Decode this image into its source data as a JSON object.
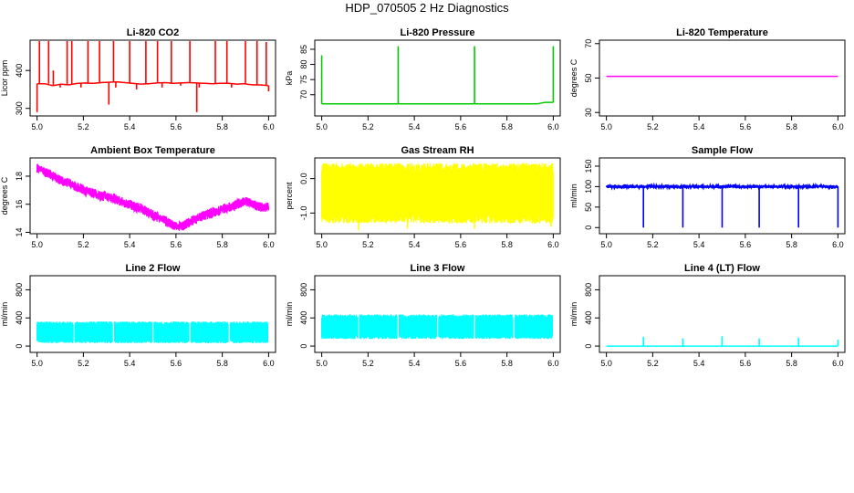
{
  "title": "HDP_070505 2 Hz Diagnostics",
  "chart_data": [
    {
      "type": "line",
      "title": "Li-820 CO2",
      "xlabel": "",
      "ylabel": "Licor ppm",
      "color": "#ff0000",
      "xlim": [
        4.97,
        6.03
      ],
      "ylim": [
        280,
        480
      ],
      "xticks": [
        "5.0",
        "5.2",
        "5.4",
        "5.6",
        "5.8",
        "6.0"
      ],
      "yticks": [
        "300",
        "400"
      ],
      "ytickvals": [
        300,
        400
      ],
      "series": [
        {
          "values": [
            365,
            365,
            360,
            364,
            362,
            366,
            367,
            366,
            368,
            369,
            370,
            368,
            366,
            364,
            365,
            367,
            368,
            366,
            367,
            368,
            367,
            366,
            365,
            366,
            366,
            364,
            365,
            362,
            362,
            360
          ],
          "spikes": [
            [
              5.0,
              290
            ],
            [
              5.01,
              480
            ],
            [
              5.05,
              480
            ],
            [
              5.07,
              400
            ],
            [
              5.1,
              355
            ],
            [
              5.13,
              480
            ],
            [
              5.15,
              480
            ],
            [
              5.19,
              355
            ],
            [
              5.22,
              480
            ],
            [
              5.27,
              480
            ],
            [
              5.31,
              310
            ],
            [
              5.33,
              480
            ],
            [
              5.34,
              355
            ],
            [
              5.4,
              480
            ],
            [
              5.43,
              350
            ],
            [
              5.47,
              480
            ],
            [
              5.52,
              480
            ],
            [
              5.54,
              355
            ],
            [
              5.58,
              480
            ],
            [
              5.62,
              360
            ],
            [
              5.66,
              480
            ],
            [
              5.69,
              290
            ],
            [
              5.7,
              355
            ],
            [
              5.77,
              480
            ],
            [
              5.82,
              480
            ],
            [
              5.84,
              355
            ],
            [
              5.9,
              480
            ],
            [
              5.95,
              480
            ],
            [
              5.99,
              475
            ],
            [
              6.0,
              345
            ]
          ]
        }
      ]
    },
    {
      "type": "line",
      "title": "Li-820 Pressure",
      "xlabel": "",
      "ylabel": "kPa",
      "color": "#00cc00",
      "xlim": [
        4.97,
        6.03
      ],
      "ylim": [
        63,
        88
      ],
      "xticks": [
        "5.0",
        "5.2",
        "5.4",
        "5.6",
        "5.8",
        "6.0"
      ],
      "yticks": [
        "70",
        "75",
        "80",
        "85"
      ],
      "ytickvals": [
        70,
        75,
        80,
        85
      ],
      "series": [
        {
          "values": [
            67,
            67,
            67,
            67,
            67,
            67,
            67,
            67,
            67,
            67,
            67,
            67,
            67,
            67,
            67,
            67,
            67,
            67,
            67,
            67,
            67,
            67,
            67,
            67,
            67,
            67,
            67,
            67,
            67.5,
            67.5
          ],
          "spikes": [
            [
              5.0,
              83
            ],
            [
              5.33,
              86
            ],
            [
              5.66,
              86
            ],
            [
              6.0,
              86
            ]
          ]
        }
      ]
    },
    {
      "type": "line",
      "title": "Li-820 Temperature",
      "xlabel": "",
      "ylabel": "degrees C",
      "color": "#ff00ff",
      "xlim": [
        4.97,
        6.03
      ],
      "ylim": [
        28,
        72
      ],
      "xticks": [
        "5.0",
        "5.2",
        "5.4",
        "5.6",
        "5.8",
        "6.0"
      ],
      "yticks": [
        "30",
        "50",
        "70"
      ],
      "ytickvals": [
        30,
        50,
        70
      ],
      "series": [
        {
          "values": [
            51,
            51,
            51,
            51,
            51,
            51,
            51,
            51,
            51,
            51,
            51,
            51,
            51,
            51,
            51,
            51,
            51,
            51,
            51,
            51,
            51,
            51,
            51,
            51,
            51,
            51,
            51,
            51,
            51,
            51
          ],
          "spikes": []
        }
      ]
    },
    {
      "type": "line",
      "title": "Ambient Box Temperature",
      "xlabel": "",
      "ylabel": "degrees C",
      "color": "#ff00ff",
      "xlim": [
        4.97,
        6.03
      ],
      "ylim": [
        13.9,
        19.3
      ],
      "xticks": [
        "5.0",
        "5.2",
        "5.4",
        "5.6",
        "5.8",
        "6.0"
      ],
      "yticks": [
        "14",
        "16",
        "18"
      ],
      "ytickvals": [
        14,
        16,
        18
      ],
      "noise": 0.35,
      "series": [
        {
          "values": [
            18.6,
            18.3,
            18.0,
            17.7,
            17.5,
            17.2,
            17.0,
            16.8,
            16.6,
            16.5,
            16.3,
            16.1,
            15.9,
            15.7,
            15.4,
            15.1,
            14.8,
            14.5,
            14.4,
            14.7,
            15.0,
            15.2,
            15.4,
            15.6,
            15.8,
            16.0,
            16.2,
            16.0,
            15.8,
            15.8
          ],
          "spikes": []
        }
      ]
    },
    {
      "type": "line",
      "title": "Gas Stream RH",
      "xlabel": "",
      "ylabel": "percent",
      "color": "#ffff00",
      "xlim": [
        4.97,
        6.03
      ],
      "ylim": [
        -1.6,
        0.6
      ],
      "xticks": [
        "5.0",
        "5.2",
        "5.4",
        "5.6",
        "5.8",
        "6.0"
      ],
      "yticks": [
        "-1.0",
        "0.0"
      ],
      "ytickvals": [
        -1.0,
        0.0
      ],
      "band": [
        -1.3,
        0.45
      ],
      "series": [
        {
          "values": [],
          "spikes": [
            [
              5.16,
              -1.5
            ],
            [
              5.37,
              -1.45
            ],
            [
              5.66,
              -1.45
            ],
            [
              5.99,
              -1.4
            ]
          ]
        }
      ]
    },
    {
      "type": "line",
      "title": "Sample Flow",
      "xlabel": "",
      "ylabel": "ml/min",
      "color": "#0000ff",
      "xlim": [
        4.97,
        6.03
      ],
      "ylim": [
        -15,
        170
      ],
      "xticks": [
        "5.0",
        "5.2",
        "5.4",
        "5.6",
        "5.8",
        "6.0"
      ],
      "yticks": [
        "0",
        "50",
        "100",
        "150"
      ],
      "ytickvals": [
        0,
        50,
        100,
        150
      ],
      "noise": 4,
      "series": [
        {
          "values": [
            100,
            100,
            100,
            100,
            100,
            100,
            100,
            100,
            100,
            100,
            100,
            100,
            100,
            100,
            100,
            100,
            100,
            100,
            100,
            100,
            100,
            100,
            100,
            100,
            100,
            100,
            100,
            100,
            100,
            100
          ],
          "spikes": [
            [
              5.16,
              0
            ],
            [
              5.33,
              0
            ],
            [
              5.5,
              0
            ],
            [
              5.66,
              0
            ],
            [
              5.83,
              0
            ],
            [
              6.0,
              0
            ]
          ]
        }
      ]
    },
    {
      "type": "line",
      "title": "Line 2 Flow",
      "xlabel": "",
      "ylabel": "ml/min",
      "color": "#00ffff",
      "xlim": [
        4.97,
        6.03
      ],
      "ylim": [
        -90,
        1000
      ],
      "xticks": [
        "5.0",
        "5.2",
        "5.4",
        "5.6",
        "5.8",
        "6.0"
      ],
      "yticks": [
        "0",
        "400",
        "800"
      ],
      "ytickvals": [
        0,
        400,
        800
      ],
      "band": [
        40,
        350
      ],
      "gaps": [
        5.16,
        5.33,
        5.5,
        5.66,
        5.83,
        6.0
      ],
      "series": [
        {
          "values": [],
          "spikes": []
        }
      ]
    },
    {
      "type": "line",
      "title": "Line 3 Flow",
      "xlabel": "",
      "ylabel": "ml/min",
      "color": "#00ffff",
      "xlim": [
        4.97,
        6.03
      ],
      "ylim": [
        -90,
        1000
      ],
      "xticks": [
        "5.0",
        "5.2",
        "5.4",
        "5.6",
        "5.8",
        "6.0"
      ],
      "yticks": [
        "0",
        "400",
        "800"
      ],
      "ytickvals": [
        0,
        400,
        800
      ],
      "band": [
        100,
        450
      ],
      "gaps": [
        5.16,
        5.33,
        5.5,
        5.66,
        5.83,
        6.0
      ],
      "series": [
        {
          "values": [],
          "spikes": []
        }
      ]
    },
    {
      "type": "line",
      "title": "Line 4 (LT) Flow",
      "xlabel": "",
      "ylabel": "ml/min",
      "color": "#00ffff",
      "xlim": [
        4.97,
        6.03
      ],
      "ylim": [
        -90,
        1000
      ],
      "xticks": [
        "5.0",
        "5.2",
        "5.4",
        "5.6",
        "5.8",
        "6.0"
      ],
      "yticks": [
        "0",
        "400",
        "800"
      ],
      "ytickvals": [
        0,
        400,
        800
      ],
      "series": [
        {
          "values": [
            0,
            0,
            0,
            0,
            0,
            0,
            0,
            0,
            0,
            0,
            0,
            0,
            0,
            0,
            0,
            0,
            0,
            0,
            0,
            0,
            0,
            0,
            0,
            0,
            0,
            0,
            0,
            0,
            0,
            0
          ],
          "spikes": [
            [
              5.16,
              130
            ],
            [
              5.33,
              110
            ],
            [
              5.5,
              140
            ],
            [
              5.66,
              110
            ],
            [
              5.83,
              120
            ],
            [
              6.0,
              90
            ]
          ]
        }
      ]
    }
  ]
}
